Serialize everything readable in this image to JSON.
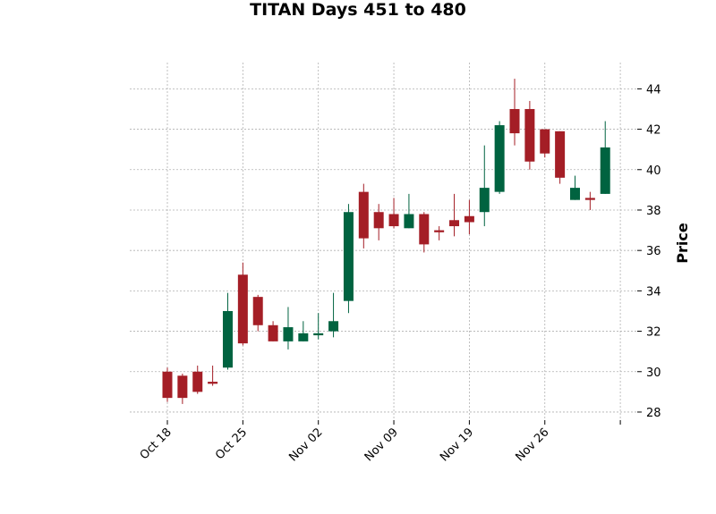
{
  "chart_data": {
    "type": "candlestick",
    "title": "TITAN Days 451 to 480",
    "xlabel": "",
    "ylabel": "Price",
    "ylim": [
      27.6,
      45.3
    ],
    "y_ticks": [
      28,
      30,
      32,
      34,
      36,
      38,
      40,
      42,
      44
    ],
    "x_tick_labels": [
      "Oct 18",
      "Oct 25",
      "Nov 02",
      "Nov 09",
      "Nov 19",
      "Nov 26",
      ""
    ],
    "x_tick_positions": [
      0,
      5,
      10,
      15,
      20,
      25,
      30
    ],
    "grid": true,
    "up_color": "#006340",
    "down_color": "#a41e26",
    "candles": [
      {
        "open": 30.0,
        "high": 30.2,
        "low": 28.5,
        "close": 28.7
      },
      {
        "open": 29.8,
        "high": 29.9,
        "low": 28.4,
        "close": 28.7
      },
      {
        "open": 30.0,
        "high": 30.3,
        "low": 28.9,
        "close": 29.0
      },
      {
        "open": 29.5,
        "high": 30.3,
        "low": 29.3,
        "close": 29.4
      },
      {
        "open": 30.2,
        "high": 33.9,
        "low": 30.1,
        "close": 33.0
      },
      {
        "open": 34.8,
        "high": 35.4,
        "low": 31.3,
        "close": 31.4
      },
      {
        "open": 33.7,
        "high": 33.8,
        "low": 32.0,
        "close": 32.3
      },
      {
        "open": 32.3,
        "high": 32.5,
        "low": 31.5,
        "close": 31.5
      },
      {
        "open": 31.5,
        "high": 33.2,
        "low": 31.1,
        "close": 32.2
      },
      {
        "open": 31.5,
        "high": 32.5,
        "low": 31.5,
        "close": 31.9
      },
      {
        "open": 31.8,
        "high": 32.9,
        "low": 31.6,
        "close": 31.9
      },
      {
        "open": 32.0,
        "high": 33.9,
        "low": 31.7,
        "close": 32.5
      },
      {
        "open": 33.5,
        "high": 38.3,
        "low": 32.9,
        "close": 37.9
      },
      {
        "open": 38.9,
        "high": 39.3,
        "low": 36.1,
        "close": 36.6
      },
      {
        "open": 37.9,
        "high": 38.3,
        "low": 36.5,
        "close": 37.1
      },
      {
        "open": 37.8,
        "high": 38.6,
        "low": 37.1,
        "close": 37.2
      },
      {
        "open": 37.1,
        "high": 38.8,
        "low": 37.1,
        "close": 37.8
      },
      {
        "open": 37.8,
        "high": 37.9,
        "low": 35.9,
        "close": 36.3
      },
      {
        "open": 37.0,
        "high": 37.2,
        "low": 36.5,
        "close": 36.9
      },
      {
        "open": 37.5,
        "high": 38.8,
        "low": 36.7,
        "close": 37.2
      },
      {
        "open": 37.7,
        "high": 38.5,
        "low": 36.8,
        "close": 37.4
      },
      {
        "open": 37.9,
        "high": 41.2,
        "low": 37.2,
        "close": 39.1
      },
      {
        "open": 38.9,
        "high": 42.4,
        "low": 38.8,
        "close": 42.2
      },
      {
        "open": 43.0,
        "high": 44.5,
        "low": 41.2,
        "close": 41.8
      },
      {
        "open": 43.0,
        "high": 43.4,
        "low": 40.0,
        "close": 40.4
      },
      {
        "open": 42.0,
        "high": 42.0,
        "low": 40.6,
        "close": 40.8
      },
      {
        "open": 41.9,
        "high": 41.9,
        "low": 39.3,
        "close": 39.6
      },
      {
        "open": 38.5,
        "high": 39.7,
        "low": 38.5,
        "close": 39.1
      },
      {
        "open": 38.6,
        "high": 38.9,
        "low": 38.0,
        "close": 38.5
      },
      {
        "open": 38.8,
        "high": 42.4,
        "low": 38.8,
        "close": 41.1
      }
    ]
  }
}
